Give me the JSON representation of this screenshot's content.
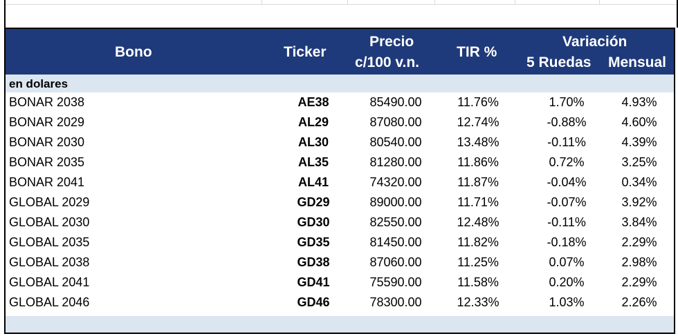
{
  "header": {
    "bono": "Bono",
    "ticker": "Ticker",
    "precio_line1": "Precio",
    "precio_line2": "c/100 v.n.",
    "tir": "TIR %",
    "variacion": "Variación",
    "ruedas": "5 Ruedas",
    "mensual": "Mensual"
  },
  "section": {
    "label": "en dolares"
  },
  "rows": [
    {
      "bono": "BONAR 2038",
      "ticker": "AE38",
      "precio": "85490.00",
      "tir": "11.76%",
      "r5": "1.70%",
      "mensual": "4.93%"
    },
    {
      "bono": "BONAR 2029",
      "ticker": "AL29",
      "precio": "87080.00",
      "tir": "12.74%",
      "r5": "-0.88%",
      "mensual": "4.60%"
    },
    {
      "bono": "BONAR 2030",
      "ticker": "AL30",
      "precio": "80540.00",
      "tir": "13.48%",
      "r5": "-0.11%",
      "mensual": "4.39%"
    },
    {
      "bono": "BONAR 2035",
      "ticker": "AL35",
      "precio": "81280.00",
      "tir": "11.86%",
      "r5": "0.72%",
      "mensual": "3.25%"
    },
    {
      "bono": "BONAR 2041",
      "ticker": "AL41",
      "precio": "74320.00",
      "tir": "11.87%",
      "r5": "-0.04%",
      "mensual": "0.34%"
    },
    {
      "bono": "GLOBAL 2029",
      "ticker": "GD29",
      "precio": "89000.00",
      "tir": "11.71%",
      "r5": "-0.07%",
      "mensual": "3.92%"
    },
    {
      "bono": "GLOBAL 2030",
      "ticker": "GD30",
      "precio": "82550.00",
      "tir": "12.48%",
      "r5": "-0.11%",
      "mensual": "3.84%"
    },
    {
      "bono": "GLOBAL 2035",
      "ticker": "GD35",
      "precio": "81450.00",
      "tir": "11.82%",
      "r5": "-0.18%",
      "mensual": "2.29%"
    },
    {
      "bono": "GLOBAL 2038",
      "ticker": "GD38",
      "precio": "87060.00",
      "tir": "11.25%",
      "r5": "0.07%",
      "mensual": "2.98%"
    },
    {
      "bono": "GLOBAL 2041",
      "ticker": "GD41",
      "precio": "75590.00",
      "tir": "11.58%",
      "r5": "0.20%",
      "mensual": "2.29%"
    },
    {
      "bono": "GLOBAL 2046",
      "ticker": "GD46",
      "precio": "78300.00",
      "tir": "12.33%",
      "r5": "1.03%",
      "mensual": "2.26%"
    }
  ],
  "colors": {
    "header_bg": "#1f3a7a",
    "section_bg": "#dce6f1"
  }
}
